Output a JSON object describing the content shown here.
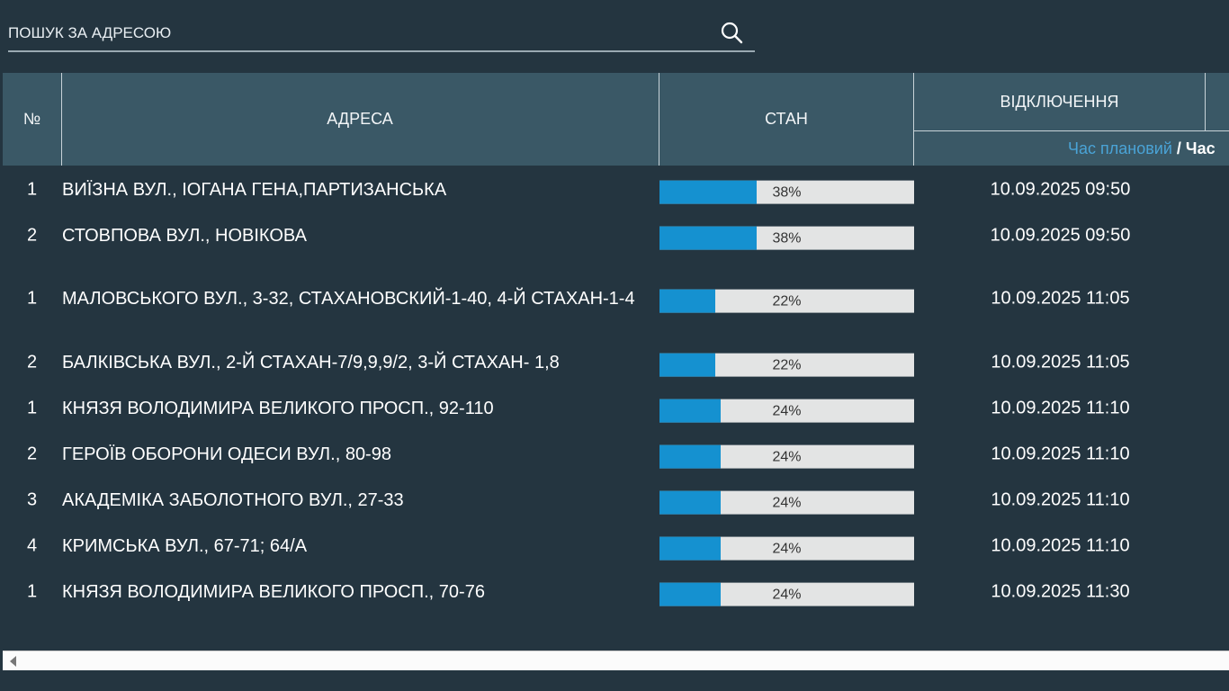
{
  "search": {
    "placeholder": "ПОШУК ЗА АДРЕСОЮ",
    "value": "",
    "icon": "search-icon"
  },
  "table": {
    "headers": {
      "num": "№",
      "address": "АДРЕСА",
      "status": "СТАН",
      "outage": "ВІДКЛЮЧЕННЯ"
    },
    "subheader": {
      "planned": "Час плановий",
      "separator": " / ",
      "other": "Час"
    },
    "colors": {
      "planned": "#4aa3d6",
      "bar_fill": "#1591d0",
      "bar_bg": "#e3e4e4"
    },
    "rows": [
      {
        "num": "1",
        "address": "ВИЇЗНА ВУЛ., ІОГАНА ГЕНА,ПАРТИЗАНСЬКА",
        "progress": 38,
        "progress_label": "38%",
        "time": "10.09.2025 09:50"
      },
      {
        "num": "2",
        "address": "СТОВПОВА ВУЛ., НОВІКОВА",
        "progress": 38,
        "progress_label": "38%",
        "time": "10.09.2025 09:50"
      },
      {
        "num": "1",
        "address": "МАЛОВСЬКОГО ВУЛ., 3-32, СТАХАНОВСКИЙ-1-40, 4-Й СТАХАН-1-4",
        "progress": 22,
        "progress_label": "22%",
        "time": "10.09.2025 11:05"
      },
      {
        "num": "2",
        "address": "БАЛКІВСЬКА ВУЛ., 2-Й СТАХАН-7/9,9,9/2, 3-Й СТАХАН- 1,8",
        "progress": 22,
        "progress_label": "22%",
        "time": "10.09.2025 11:05"
      },
      {
        "num": "1",
        "address": "КНЯЗЯ ВОЛОДИМИРА ВЕЛИКОГО ПРОСП., 92-110",
        "progress": 24,
        "progress_label": "24%",
        "time": "10.09.2025 11:10"
      },
      {
        "num": "2",
        "address": "ГЕРОЇВ ОБОРОНИ ОДЕСИ ВУЛ., 80-98",
        "progress": 24,
        "progress_label": "24%",
        "time": "10.09.2025 11:10"
      },
      {
        "num": "3",
        "address": "АКАДЕМІКА ЗАБОЛОТНОГО ВУЛ., 27-33",
        "progress": 24,
        "progress_label": "24%",
        "time": "10.09.2025 11:10"
      },
      {
        "num": "4",
        "address": "КРИМСЬКА ВУЛ., 67-71; 64/А",
        "progress": 24,
        "progress_label": "24%",
        "time": "10.09.2025 11:10"
      },
      {
        "num": "1",
        "address": "КНЯЗЯ ВОЛОДИМИРА ВЕЛИКОГО ПРОСП., 70-76",
        "progress": 24,
        "progress_label": "24%",
        "time": "10.09.2025 11:30"
      }
    ]
  }
}
